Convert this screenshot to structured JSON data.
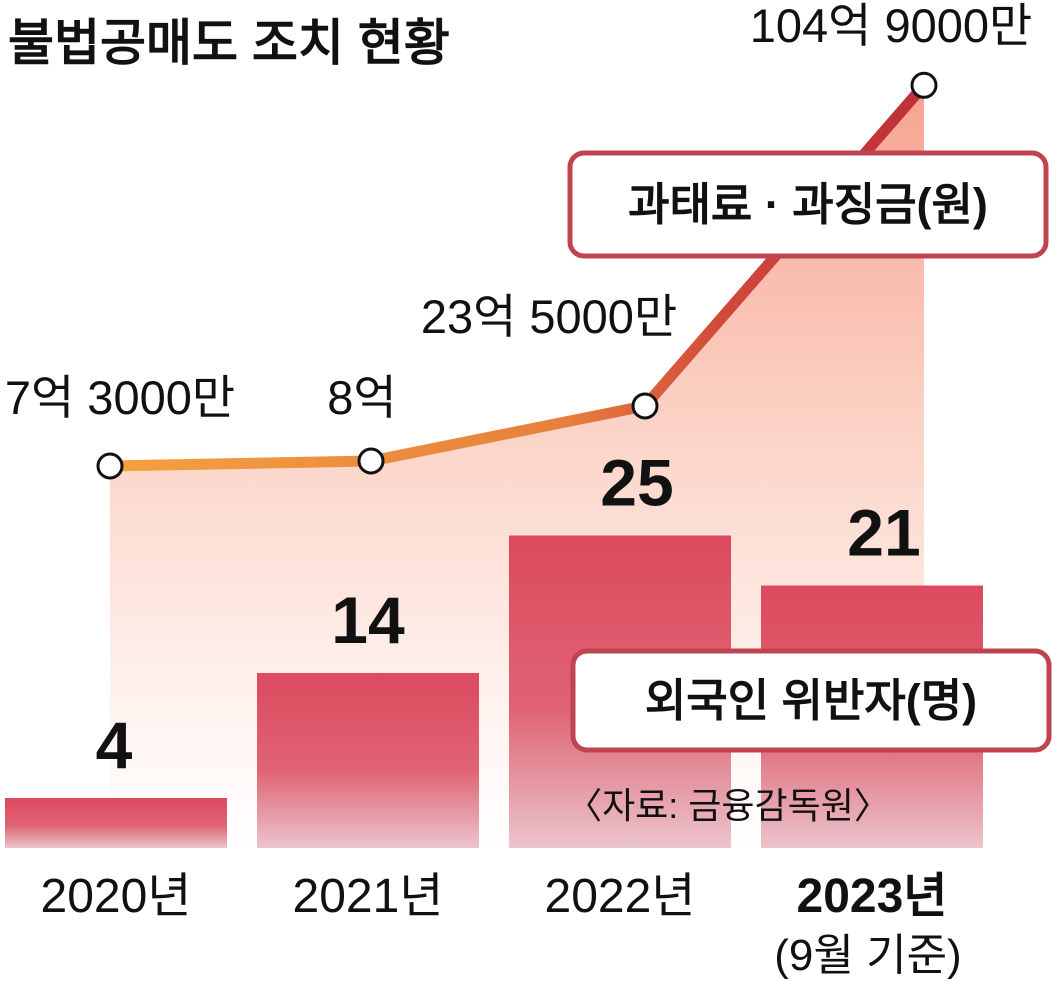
{
  "title": "불법공매도 조치 현황",
  "source": "〈자료: 금융감독원〉",
  "chart_data": {
    "type": "bar+line",
    "categories": [
      "2020년",
      "2021년",
      "2022년",
      "2023년"
    ],
    "last_category_note": "(9월 기준)",
    "bar_series": {
      "name": "외국인 위반자(명)",
      "values": [
        4,
        14,
        25,
        21
      ],
      "labels": [
        "4",
        "14",
        "25",
        "21"
      ]
    },
    "line_series": {
      "name": "과태료 · 과징금(원)",
      "values": [
        730000000,
        800000000,
        2350000000,
        10490000000
      ],
      "labels": [
        "7억 3000만",
        "8억",
        "23억 5000만",
        "104억 9000만"
      ]
    },
    "colors": {
      "bar": "#dc4a5e",
      "bar_fade": "#ebc4cc",
      "line_start": "#f5a040",
      "line_end": "#c4343f",
      "legend_border": "#bf4452"
    }
  }
}
